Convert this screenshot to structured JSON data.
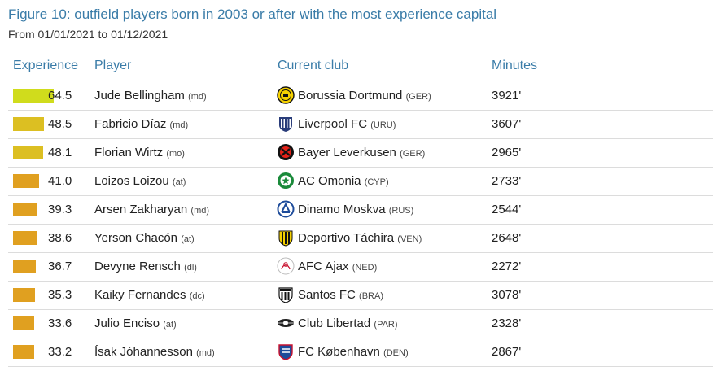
{
  "header": {
    "title": "Figure 10: outfield players born in 2003 or after with the most experience capital",
    "subtitle": "From 01/01/2021 to 01/12/2021"
  },
  "columns": {
    "experience": "Experience",
    "player": "Player",
    "club": "Current club",
    "minutes": "Minutes"
  },
  "colors": {
    "title": "#3a7ca8",
    "bar_high": "#d0dc1c",
    "bar_mid": "#dcbf22",
    "bar_low": "#e0a020"
  },
  "chart_data": {
    "type": "table",
    "rows": [
      {
        "experience": 64.5,
        "player": "Jude Bellingham",
        "position": "(md)",
        "club": "Borussia Dortmund",
        "country": "(GER)",
        "minutes": "3921'",
        "crest_icon": "borussia-dortmund-crest-icon"
      },
      {
        "experience": 48.5,
        "player": "Fabricio Díaz",
        "position": "(md)",
        "club": "Liverpool FC",
        "country": "(URU)",
        "minutes": "3607'",
        "crest_icon": "liverpool-fc-uru-crest-icon"
      },
      {
        "experience": 48.1,
        "player": "Florian Wirtz",
        "position": "(mo)",
        "club": "Bayer Leverkusen",
        "country": "(GER)",
        "minutes": "2965'",
        "crest_icon": "bayer-leverkusen-crest-icon"
      },
      {
        "experience": 41.0,
        "player": "Loizos Loizou",
        "position": "(at)",
        "club": "AC Omonia",
        "country": "(CYP)",
        "minutes": "2733'",
        "crest_icon": "ac-omonia-crest-icon"
      },
      {
        "experience": 39.3,
        "player": "Arsen Zakharyan",
        "position": "(md)",
        "club": "Dinamo Moskva",
        "country": "(RUS)",
        "minutes": "2544'",
        "crest_icon": "dinamo-moskva-crest-icon"
      },
      {
        "experience": 38.6,
        "player": "Yerson Chacón",
        "position": "(at)",
        "club": "Deportivo Táchira",
        "country": "(VEN)",
        "minutes": "2648'",
        "crest_icon": "deportivo-tachira-crest-icon"
      },
      {
        "experience": 36.7,
        "player": "Devyne Rensch",
        "position": "(dl)",
        "club": "AFC Ajax",
        "country": "(NED)",
        "minutes": "2272'",
        "crest_icon": "afc-ajax-crest-icon"
      },
      {
        "experience": 35.3,
        "player": "Kaiky Fernandes",
        "position": "(dc)",
        "club": "Santos FC",
        "country": "(BRA)",
        "minutes": "3078'",
        "crest_icon": "santos-fc-crest-icon"
      },
      {
        "experience": 33.6,
        "player": "Julio Enciso",
        "position": "(at)",
        "club": "Club Libertad",
        "country": "(PAR)",
        "minutes": "2328'",
        "crest_icon": "club-libertad-crest-icon"
      },
      {
        "experience": 33.2,
        "player": "Ísak Jóhannesson",
        "position": "(md)",
        "club": "FC København",
        "country": "(DEN)",
        "minutes": "2867'",
        "crest_icon": "fc-kobenhavn-crest-icon"
      }
    ]
  }
}
